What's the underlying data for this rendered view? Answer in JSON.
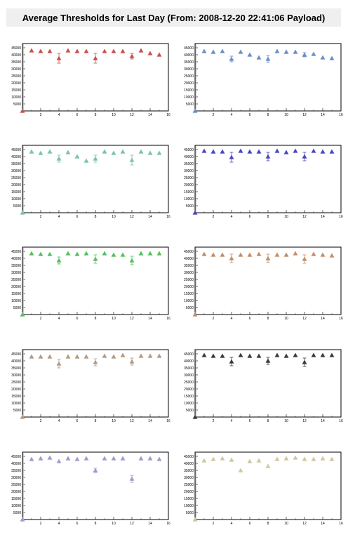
{
  "title": "Average Thresholds for Last Day (From: 2008-12-20 22:41:06 Payload)",
  "chart_data": [
    {
      "type": "scatter",
      "marker": "triangle",
      "color": "#c8504a",
      "xlim": [
        0,
        16
      ],
      "ylim": [
        0,
        48000
      ],
      "x_ticks": [
        "2",
        "4",
        "6",
        "8",
        "10",
        "12",
        "14",
        "16"
      ],
      "y_ticks": [
        "45000",
        "40000",
        "35000",
        "30000",
        "25000",
        "20000",
        "15000",
        "10000",
        "5000"
      ],
      "x": [
        0,
        1,
        2,
        3,
        4,
        5,
        6,
        7,
        8,
        9,
        10,
        11,
        12,
        13,
        14,
        15
      ],
      "y": [
        0,
        43000,
        42500,
        42500,
        37500,
        43000,
        42500,
        42500,
        37500,
        42500,
        42500,
        42500,
        39000,
        43000,
        41000,
        40000
      ],
      "err": [
        0,
        0,
        0,
        0,
        3500,
        0,
        0,
        0,
        3500,
        0,
        0,
        0,
        2000,
        0,
        0,
        0
      ]
    },
    {
      "type": "scatter",
      "marker": "triangle",
      "color": "#6a8ec6",
      "xlim": [
        0,
        16
      ],
      "ylim": [
        0,
        48000
      ],
      "x_ticks": [
        "2",
        "4",
        "6",
        "8",
        "10",
        "12",
        "14",
        "16"
      ],
      "y_ticks": [
        "45000",
        "40000",
        "35000",
        "30000",
        "25000",
        "20000",
        "15000",
        "10000",
        "5000"
      ],
      "x": [
        0,
        1,
        2,
        3,
        4,
        5,
        6,
        7,
        8,
        9,
        10,
        11,
        12,
        13,
        14,
        15
      ],
      "y": [
        0,
        42500,
        42000,
        42500,
        37000,
        42000,
        40000,
        38000,
        37000,
        42500,
        42000,
        42000,
        40000,
        40500,
        38000,
        37500
      ],
      "err": [
        0,
        0,
        0,
        0,
        2000,
        0,
        0,
        0,
        2500,
        0,
        0,
        0,
        1500,
        0,
        0,
        0
      ]
    },
    {
      "type": "scatter",
      "marker": "triangle",
      "color": "#7ac3a8",
      "xlim": [
        0,
        16
      ],
      "ylim": [
        0,
        48000
      ],
      "x_ticks": [
        "2",
        "4",
        "6",
        "8",
        "10",
        "12",
        "14",
        "16"
      ],
      "y_ticks": [
        "45000",
        "40000",
        "35000",
        "30000",
        "25000",
        "20000",
        "15000",
        "10000",
        "5000"
      ],
      "x": [
        0,
        1,
        2,
        3,
        4,
        5,
        6,
        7,
        8,
        9,
        10,
        11,
        12,
        13,
        14,
        15
      ],
      "y": [
        0,
        43500,
        42500,
        43500,
        38500,
        43000,
        40000,
        37000,
        38500,
        43500,
        42500,
        43500,
        37500,
        43500,
        42500,
        42500
      ],
      "err": [
        0,
        0,
        0,
        0,
        2500,
        0,
        0,
        0,
        2500,
        0,
        0,
        0,
        3500,
        0,
        0,
        0
      ]
    },
    {
      "type": "scatter",
      "marker": "triangle",
      "color": "#4a45c2",
      "xlim": [
        0,
        16
      ],
      "ylim": [
        0,
        48000
      ],
      "x_ticks": [
        "2",
        "4",
        "6",
        "8",
        "10",
        "12",
        "14",
        "16"
      ],
      "y_ticks": [
        "45000",
        "40000",
        "35000",
        "30000",
        "25000",
        "20000",
        "15000",
        "10000",
        "5000"
      ],
      "x": [
        0,
        1,
        2,
        3,
        4,
        5,
        6,
        7,
        8,
        9,
        10,
        11,
        12,
        13,
        14,
        15
      ],
      "y": [
        0,
        44000,
        43500,
        43500,
        39500,
        44000,
        43500,
        43500,
        40000,
        44000,
        43000,
        44000,
        40000,
        44000,
        43500,
        43500
      ],
      "err": [
        0,
        0,
        0,
        0,
        3500,
        0,
        0,
        0,
        3000,
        0,
        0,
        0,
        3000,
        0,
        0,
        0
      ]
    },
    {
      "type": "scatter",
      "marker": "triangle",
      "color": "#52c25a",
      "xlim": [
        0,
        16
      ],
      "ylim": [
        0,
        48000
      ],
      "x_ticks": [
        "2",
        "4",
        "6",
        "8",
        "10",
        "12",
        "14",
        "16"
      ],
      "y_ticks": [
        "45000",
        "40000",
        "35000",
        "30000",
        "25000",
        "20000",
        "15000",
        "10000",
        "5000"
      ],
      "x": [
        0,
        1,
        2,
        3,
        4,
        5,
        6,
        7,
        8,
        9,
        10,
        11,
        12,
        13,
        14,
        15
      ],
      "y": [
        0,
        43500,
        43000,
        43000,
        38500,
        43500,
        43000,
        43500,
        39500,
        43500,
        42500,
        42500,
        38500,
        43500,
        43500,
        43500
      ],
      "err": [
        0,
        0,
        0,
        0,
        2500,
        0,
        0,
        0,
        3000,
        0,
        0,
        0,
        3000,
        0,
        0,
        0
      ]
    },
    {
      "type": "scatter",
      "marker": "triangle",
      "color": "#c58c66",
      "xlim": [
        0,
        16
      ],
      "ylim": [
        0,
        48000
      ],
      "x_ticks": [
        "2",
        "4",
        "6",
        "8",
        "10",
        "12",
        "14",
        "16"
      ],
      "y_ticks": [
        "45000",
        "40000",
        "35000",
        "30000",
        "25000",
        "20000",
        "15000",
        "10000",
        "5000"
      ],
      "x": [
        0,
        1,
        2,
        3,
        4,
        5,
        6,
        7,
        8,
        9,
        10,
        11,
        12,
        13,
        14,
        15
      ],
      "y": [
        0,
        43000,
        42500,
        42500,
        40000,
        42500,
        42500,
        43000,
        40000,
        42500,
        42500,
        43500,
        39500,
        43000,
        42500,
        42000
      ],
      "err": [
        0,
        0,
        0,
        0,
        3000,
        0,
        0,
        0,
        3000,
        0,
        0,
        0,
        3000,
        0,
        0,
        0
      ]
    },
    {
      "type": "scatter",
      "marker": "triangle",
      "color": "#b39a82",
      "xlim": [
        0,
        16
      ],
      "ylim": [
        0,
        48000
      ],
      "x_ticks": [
        "2",
        "4",
        "6",
        "8",
        "10",
        "12",
        "14",
        "16"
      ],
      "y_ticks": [
        "45000",
        "40000",
        "35000",
        "30000",
        "25000",
        "20000",
        "15000",
        "10000",
        "5000"
      ],
      "x": [
        0,
        1,
        2,
        3,
        4,
        5,
        6,
        7,
        8,
        9,
        10,
        11,
        12,
        13,
        14,
        15
      ],
      "y": [
        0,
        43000,
        43000,
        43000,
        38000,
        43000,
        43000,
        43000,
        39000,
        43500,
        43000,
        44000,
        39500,
        43500,
        43500,
        43500
      ],
      "err": [
        0,
        0,
        0,
        0,
        3000,
        0,
        0,
        0,
        2500,
        0,
        0,
        0,
        2500,
        0,
        0,
        0
      ]
    },
    {
      "type": "scatter",
      "marker": "triangle",
      "color": "#3a3a3a",
      "xlim": [
        0,
        16
      ],
      "ylim": [
        0,
        48000
      ],
      "x_ticks": [
        "2",
        "4",
        "6",
        "8",
        "10",
        "12",
        "14",
        "16"
      ],
      "y_ticks": [
        "45000",
        "40000",
        "35000",
        "30000",
        "25000",
        "20000",
        "15000",
        "10000",
        "5000"
      ],
      "x": [
        0,
        1,
        2,
        3,
        4,
        5,
        6,
        7,
        8,
        9,
        10,
        11,
        12,
        13,
        14,
        15
      ],
      "y": [
        0,
        44000,
        43500,
        43500,
        39500,
        44000,
        43500,
        43500,
        40000,
        44000,
        43500,
        44000,
        39000,
        44000,
        44000,
        44000
      ],
      "err": [
        0,
        0,
        0,
        0,
        3000,
        0,
        0,
        0,
        2500,
        0,
        0,
        0,
        3000,
        0,
        0,
        0
      ]
    },
    {
      "type": "scatter",
      "marker": "triangle",
      "color": "#9e9bcb",
      "xlim": [
        0,
        16
      ],
      "ylim": [
        0,
        48000
      ],
      "x_ticks": [
        "2",
        "4",
        "6",
        "8",
        "10",
        "12",
        "14",
        "16"
      ],
      "y_ticks": [
        "45000",
        "40000",
        "35000",
        "30000",
        "25000",
        "20000",
        "15000",
        "10000",
        "5000"
      ],
      "x": [
        0,
        1,
        2,
        3,
        4,
        5,
        6,
        7,
        8,
        9,
        10,
        11,
        12,
        13,
        14,
        15
      ],
      "y": [
        0,
        43000,
        43500,
        44000,
        41500,
        43500,
        43000,
        43500,
        35000,
        43500,
        43500,
        43500,
        29000,
        43500,
        43500,
        43000
      ],
      "err": [
        0,
        0,
        0,
        0,
        0,
        0,
        0,
        0,
        1500,
        0,
        0,
        0,
        2500,
        0,
        0,
        0
      ]
    },
    {
      "type": "scatter",
      "marker": "triangle",
      "color": "#d2c6a0",
      "xlim": [
        0,
        16
      ],
      "ylim": [
        0,
        48000
      ],
      "x_ticks": [
        "2",
        "4",
        "6",
        "8",
        "10",
        "12",
        "14",
        "16"
      ],
      "y_ticks": [
        "45000",
        "40000",
        "35000",
        "30000",
        "25000",
        "20000",
        "15000",
        "10000",
        "5000"
      ],
      "x": [
        0,
        1,
        2,
        3,
        4,
        5,
        6,
        7,
        8,
        9,
        10,
        11,
        12,
        13,
        14,
        15
      ],
      "y": [
        0,
        42000,
        43000,
        43500,
        42500,
        35000,
        41500,
        42000,
        38000,
        43000,
        43500,
        44000,
        43000,
        43000,
        43500,
        43000
      ],
      "err": [
        0,
        0,
        0,
        0,
        0,
        0,
        0,
        0,
        0,
        0,
        0,
        0,
        0,
        0,
        0,
        0
      ]
    }
  ]
}
